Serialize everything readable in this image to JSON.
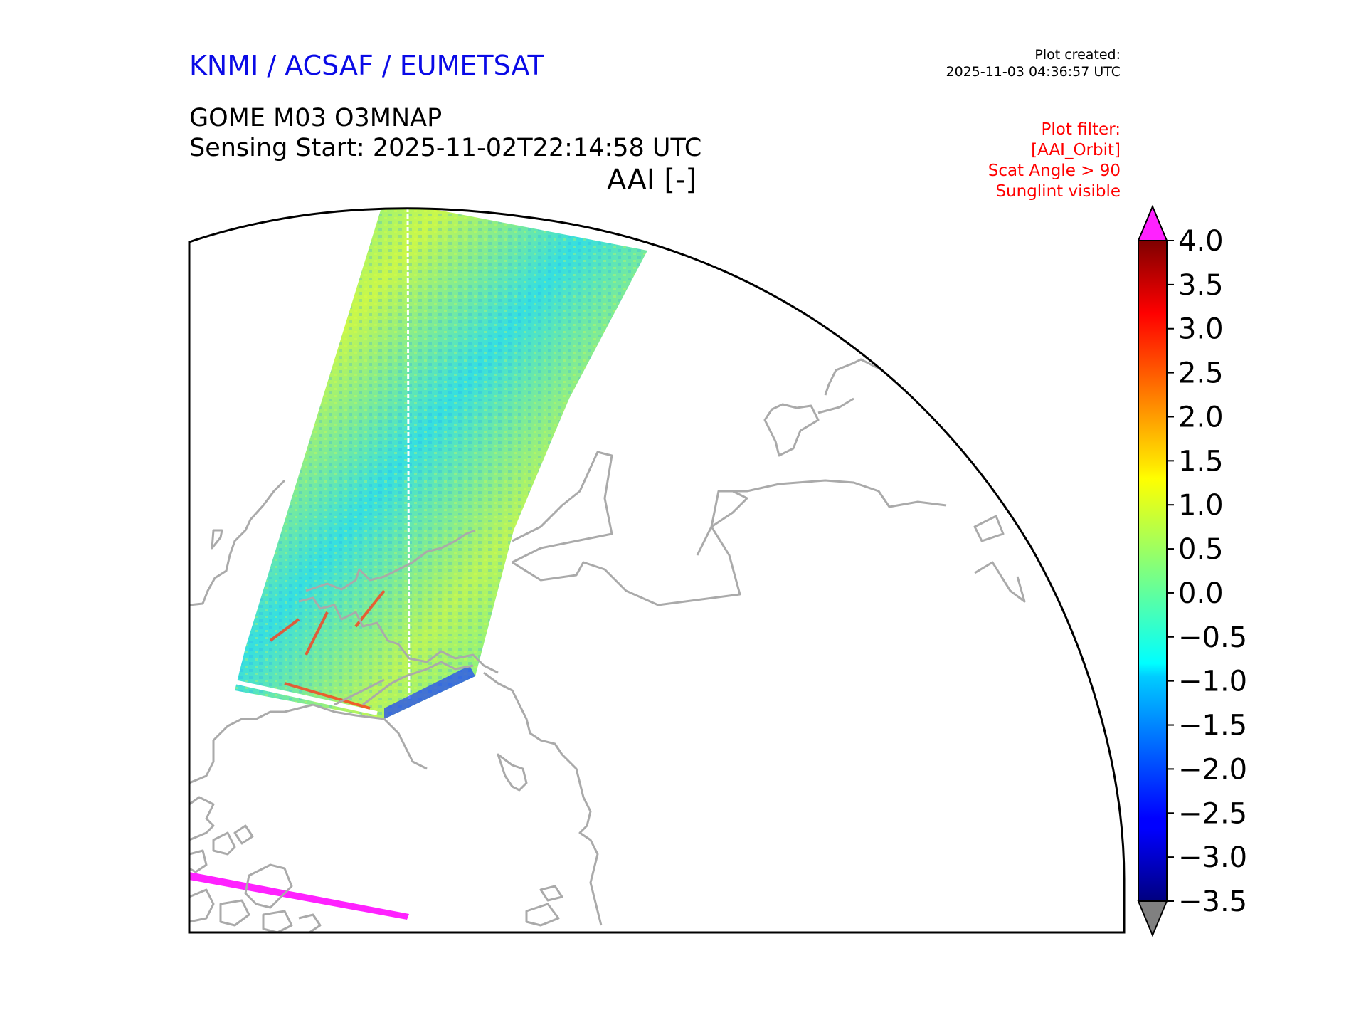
{
  "header": {
    "organization": "KNMI / ACSAF / EUMETSAT",
    "plot_created_label": "Plot created:",
    "plot_created_time": "2025-11-03 04:36:57 UTC",
    "product": "GOME M03 O3MNAP",
    "sensing_start": "Sensing Start: 2025-11-02T22:14:58 UTC",
    "variable": "AAI [-]"
  },
  "filter": {
    "lines": [
      "Plot filter:",
      "[AAI_Orbit]",
      "Scat Angle > 90",
      "Sunglint visible"
    ]
  },
  "colors": {
    "organization": "#0a0ae6",
    "filter_text": "#ff0000",
    "coastline": "#aaaaaa",
    "over_range": "#ff22ff",
    "under_range": "#808080"
  },
  "colorbar": {
    "colormap": "jet",
    "min": -3.5,
    "max": 4.0,
    "ticks": [
      "4.0",
      "3.5",
      "3.0",
      "2.5",
      "2.0",
      "1.5",
      "1.0",
      "0.5",
      "0.0",
      "−0.5",
      "−1.0",
      "−1.5",
      "−2.0",
      "−2.5",
      "−3.0",
      "−3.5"
    ],
    "extend": "both"
  },
  "map": {
    "projection": "north polar stereographic",
    "main_swath_dominant_aai": [
      -1.0,
      1.5
    ],
    "missing_data_color": "#ff22ff"
  }
}
